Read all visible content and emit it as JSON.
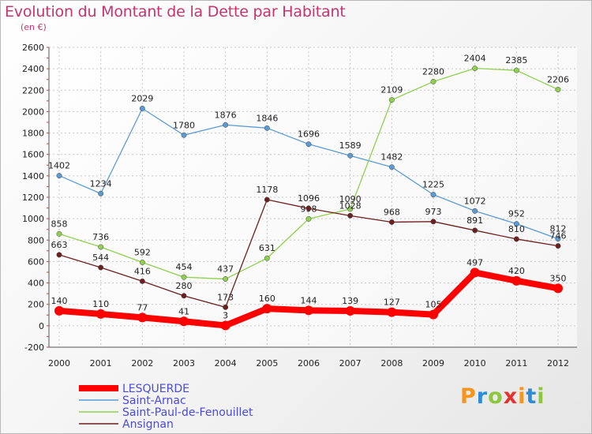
{
  "chart_data": {
    "type": "line",
    "title": "Evolution du Montant de la Dette par Habitant",
    "subtitle": "(en €)",
    "x": [
      2000,
      2001,
      2002,
      2003,
      2004,
      2005,
      2006,
      2007,
      2008,
      2009,
      2010,
      2011,
      2012
    ],
    "ylim": [
      -200,
      2600
    ],
    "yticks": [
      -200,
      0,
      200,
      400,
      600,
      800,
      1000,
      1200,
      1400,
      1600,
      1800,
      2000,
      2200,
      2400,
      2600
    ],
    "grid": true,
    "legend_position": "bottom-left",
    "series": [
      {
        "name": "LESQUERDE",
        "color": "#ff0000",
        "values": [
          140,
          110,
          77,
          41,
          3,
          160,
          144,
          139,
          127,
          105,
          497,
          420,
          350
        ]
      },
      {
        "name": "Saint-Arnac",
        "color": "#5b9bd5",
        "values": [
          1402,
          1234,
          2029,
          1780,
          1876,
          1846,
          1696,
          1589,
          1482,
          1225,
          1072,
          952,
          812
        ]
      },
      {
        "name": "Saint-Paul-de-Fenouillet",
        "color": "#8fd14f",
        "values": [
          858,
          736,
          592,
          454,
          437,
          631,
          998,
          1090,
          2109,
          2280,
          2404,
          2385,
          2206
        ]
      },
      {
        "name": "Ansignan",
        "color": "#6b1f1f",
        "values": [
          663,
          544,
          416,
          280,
          173,
          1178,
          1096,
          1028,
          968,
          973,
          891,
          810,
          746
        ]
      }
    ]
  },
  "logo": {
    "letters": [
      "P",
      "r",
      "o",
      "x",
      "i",
      "t",
      "i"
    ]
  }
}
